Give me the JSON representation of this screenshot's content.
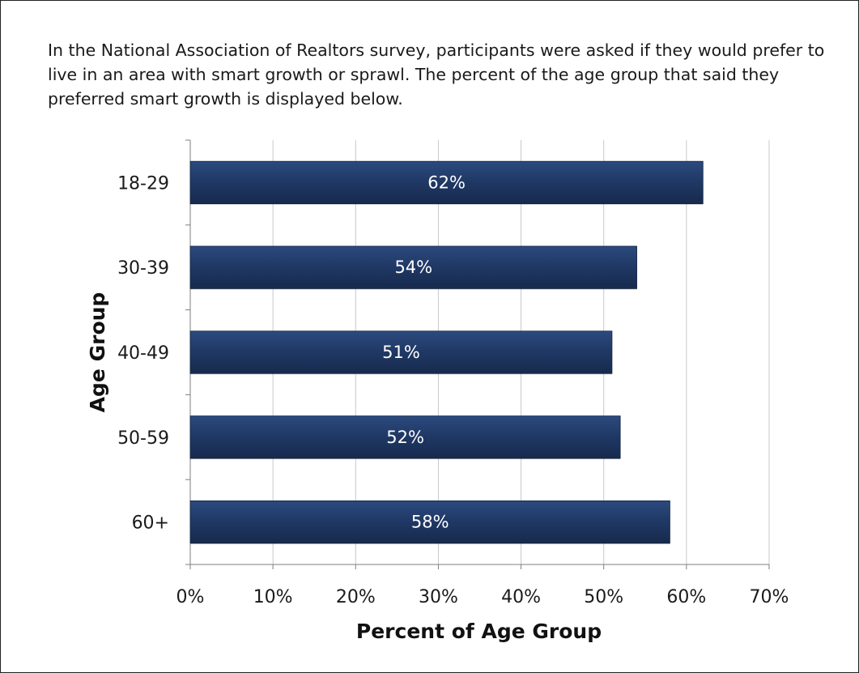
{
  "caption": "In the National Association of Realtors survey, participants were asked if they would prefer to live in an area with smart growth or sprawl. The percent of the age group that said they preferred smart growth is displayed below.",
  "chart_data": {
    "type": "bar",
    "orientation": "horizontal",
    "categories": [
      "18-29",
      "30-39",
      "40-49",
      "50-59",
      "60+"
    ],
    "values": [
      62,
      54,
      51,
      52,
      58
    ],
    "data_labels": [
      "62%",
      "54%",
      "51%",
      "52%",
      "58%"
    ],
    "xlabel": "Percent of Age Group",
    "ylabel": "Age Group",
    "xlim": [
      0,
      70
    ],
    "xticks": [
      "0%",
      "10%",
      "20%",
      "30%",
      "40%",
      "50%",
      "60%",
      "70%"
    ],
    "grid": true,
    "legend": "none",
    "bar_color": "#1f3864",
    "grid_color": "#c8c8c8"
  }
}
